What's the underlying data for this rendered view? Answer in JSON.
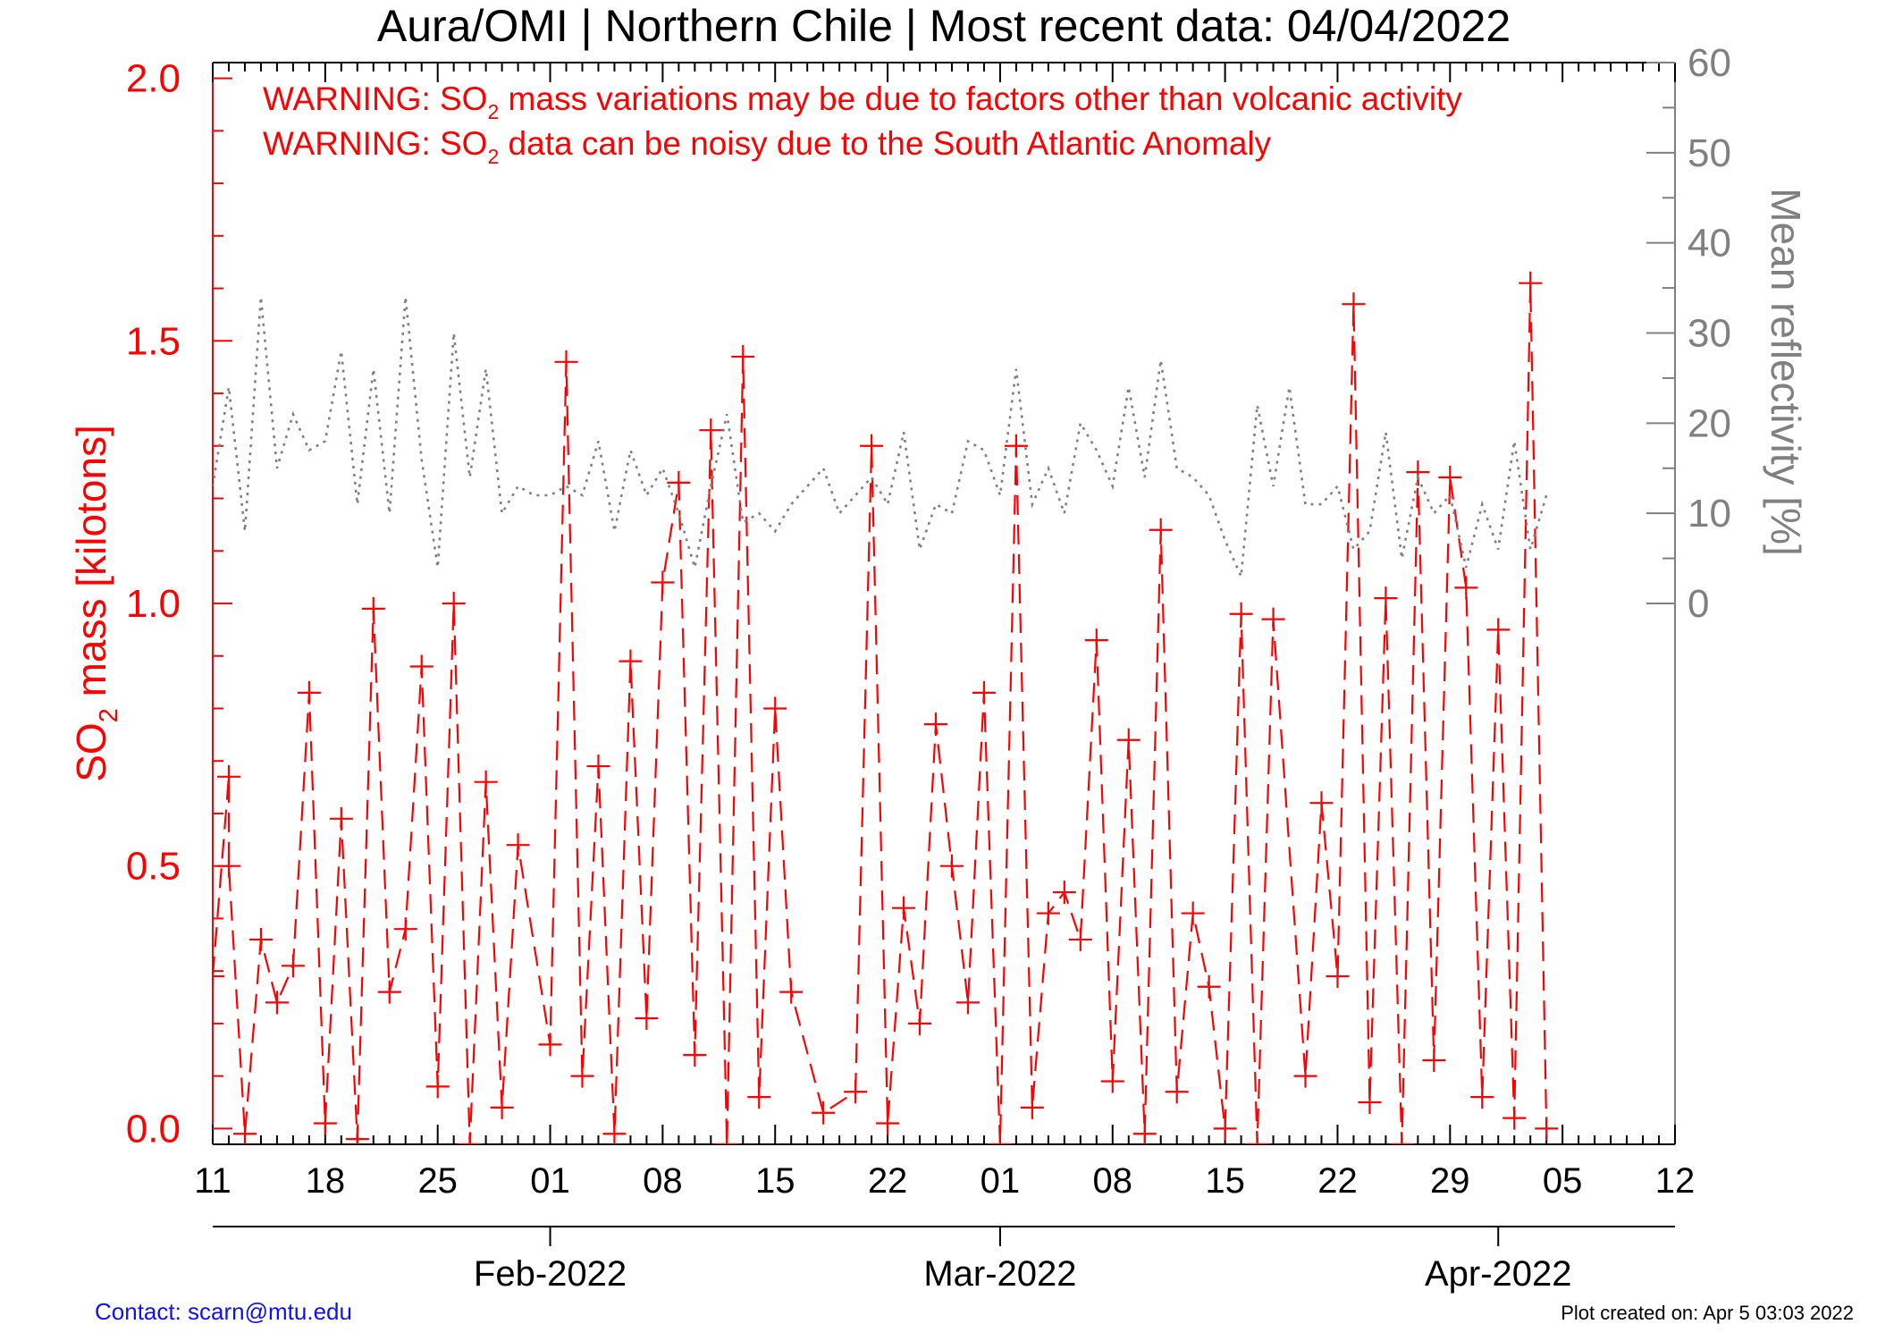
{
  "chart_data": {
    "type": "line",
    "title": "Aura/OMI | Northern Chile | Most recent data: 04/04/2022",
    "warnings": [
      {
        "prefix": "WARNING: SO",
        "sub": "2",
        "suffix": " mass variations may be due to factors other than volcanic activity"
      },
      {
        "prefix": "WARNING: SO",
        "sub": "2",
        "suffix": " data can be noisy due to the South Atlantic Anomaly"
      }
    ],
    "ylabel_left": {
      "prefix": "SO",
      "sub": "2",
      "suffix": " mass [kilotons]"
    },
    "ylabel_right": "Mean reflectivity [%]",
    "x_range": [
      "2022-01-11",
      "2022-04-12"
    ],
    "x_tick_labels": [
      "11",
      "18",
      "25",
      "01",
      "08",
      "15",
      "22",
      "01",
      "08",
      "15",
      "22",
      "29",
      "05",
      "12"
    ],
    "x_tick_dates": [
      "2022-01-11",
      "2022-01-18",
      "2022-01-25",
      "2022-02-01",
      "2022-02-08",
      "2022-02-15",
      "2022-02-22",
      "2022-03-01",
      "2022-03-08",
      "2022-03-15",
      "2022-03-22",
      "2022-03-29",
      "2022-04-05",
      "2022-04-12"
    ],
    "month_labels": [
      {
        "label": "Feb-2022",
        "date": "2022-02-01"
      },
      {
        "label": "Mar-2022",
        "date": "2022-03-01"
      },
      {
        "label": "Apr-2022",
        "date": "2022-04-01"
      }
    ],
    "y_left_range": [
      -0.03,
      2.03
    ],
    "y_left_ticks": [
      "0.0",
      "0.5",
      "1.0",
      "1.5",
      "2.0"
    ],
    "y_right_range": [
      -60,
      60
    ],
    "y_right_ticks": [
      "0",
      "10",
      "20",
      "30",
      "40",
      "50",
      "60"
    ],
    "series": [
      {
        "name": "SO2 mass",
        "axis": "left",
        "color": "#ff0000",
        "style": "dashed",
        "marker": "plus",
        "x": [
          "2022-01-11",
          "2022-01-12",
          "2022-01-12",
          "2022-01-13",
          "2022-01-14",
          "2022-01-15",
          "2022-01-16",
          "2022-01-17",
          "2022-01-18",
          "2022-01-19",
          "2022-01-20",
          "2022-01-21",
          "2022-01-22",
          "2022-01-23",
          "2022-01-24",
          "2022-01-25",
          "2022-01-26",
          "2022-01-27",
          "2022-01-28",
          "2022-01-29",
          "2022-01-30",
          "2022-02-01",
          "2022-02-02",
          "2022-02-03",
          "2022-02-04",
          "2022-02-05",
          "2022-02-06",
          "2022-02-07",
          "2022-02-08",
          "2022-02-09",
          "2022-02-10",
          "2022-02-11",
          "2022-02-12",
          "2022-02-13",
          "2022-02-14",
          "2022-02-15",
          "2022-02-16",
          "2022-02-18",
          "2022-02-20",
          "2022-02-21",
          "2022-02-22",
          "2022-02-23",
          "2022-02-24",
          "2022-02-25",
          "2022-02-26",
          "2022-02-27",
          "2022-02-28",
          "2022-03-01",
          "2022-03-02",
          "2022-03-03",
          "2022-03-04",
          "2022-03-05",
          "2022-03-06",
          "2022-03-07",
          "2022-03-08",
          "2022-03-09",
          "2022-03-10",
          "2022-03-11",
          "2022-03-12",
          "2022-03-13",
          "2022-03-14",
          "2022-03-15",
          "2022-03-16",
          "2022-03-17",
          "2022-03-18",
          "2022-03-20",
          "2022-03-21",
          "2022-03-22",
          "2022-03-23",
          "2022-03-24",
          "2022-03-25",
          "2022-03-26",
          "2022-03-27",
          "2022-03-28",
          "2022-03-29",
          "2022-03-30",
          "2022-03-31",
          "2022-04-01",
          "2022-04-02",
          "2022-04-03",
          "2022-04-04"
        ],
        "values": [
          0.29,
          0.67,
          0.5,
          -0.01,
          0.36,
          0.24,
          0.31,
          0.83,
          0.01,
          0.59,
          -0.02,
          0.99,
          0.26,
          0.38,
          0.88,
          0.08,
          1.0,
          -0.03,
          0.66,
          0.04,
          0.54,
          0.16,
          1.46,
          0.1,
          0.69,
          -0.01,
          0.89,
          0.21,
          1.04,
          1.23,
          0.14,
          1.33,
          -0.03,
          1.47,
          0.06,
          0.8,
          0.26,
          0.03,
          0.07,
          1.3,
          0.01,
          0.42,
          0.2,
          0.77,
          0.5,
          0.24,
          0.83,
          -0.03,
          1.3,
          0.04,
          0.41,
          0.45,
          0.36,
          0.93,
          0.09,
          0.74,
          -0.01,
          1.14,
          0.07,
          0.41,
          0.27,
          0.0,
          0.98,
          -0.03,
          0.97,
          0.1,
          0.62,
          0.29,
          1.57,
          0.05,
          1.01,
          -0.03,
          1.25,
          0.13,
          1.24,
          1.03,
          0.06,
          0.95,
          0.02,
          1.61,
          0.0
        ]
      },
      {
        "name": "Mean reflectivity",
        "axis": "right",
        "color": "#808080",
        "style": "dotted",
        "x": [
          "2022-01-11",
          "2022-01-12",
          "2022-01-13",
          "2022-01-14",
          "2022-01-15",
          "2022-01-16",
          "2022-01-17",
          "2022-01-18",
          "2022-01-19",
          "2022-01-20",
          "2022-01-21",
          "2022-01-22",
          "2022-01-23",
          "2022-01-24",
          "2022-01-25",
          "2022-01-26",
          "2022-01-27",
          "2022-01-28",
          "2022-01-29",
          "2022-01-30",
          "2022-01-31",
          "2022-02-01",
          "2022-02-02",
          "2022-02-03",
          "2022-02-04",
          "2022-02-05",
          "2022-02-06",
          "2022-02-07",
          "2022-02-08",
          "2022-02-09",
          "2022-02-10",
          "2022-02-11",
          "2022-02-12",
          "2022-02-13",
          "2022-02-14",
          "2022-02-15",
          "2022-02-16",
          "2022-02-17",
          "2022-02-18",
          "2022-02-19",
          "2022-02-20",
          "2022-02-21",
          "2022-02-22",
          "2022-02-23",
          "2022-02-24",
          "2022-02-25",
          "2022-02-26",
          "2022-02-27",
          "2022-02-28",
          "2022-03-01",
          "2022-03-02",
          "2022-03-03",
          "2022-03-04",
          "2022-03-05",
          "2022-03-06",
          "2022-03-07",
          "2022-03-08",
          "2022-03-09",
          "2022-03-10",
          "2022-03-11",
          "2022-03-12",
          "2022-03-13",
          "2022-03-14",
          "2022-03-15",
          "2022-03-16",
          "2022-03-17",
          "2022-03-18",
          "2022-03-19",
          "2022-03-20",
          "2022-03-21",
          "2022-03-22",
          "2022-03-23",
          "2022-03-24",
          "2022-03-25",
          "2022-03-26",
          "2022-03-27",
          "2022-03-28",
          "2022-03-29",
          "2022-03-30",
          "2022-03-31",
          "2022-04-01",
          "2022-04-02",
          "2022-04-03",
          "2022-04-04"
        ],
        "values": [
          13,
          24,
          8,
          34,
          15,
          21,
          17,
          18,
          28,
          11,
          26,
          10,
          34,
          16,
          4,
          30,
          14,
          26,
          10,
          13,
          12,
          12,
          13,
          12,
          18,
          8,
          17,
          12,
          15,
          10,
          4,
          13,
          21,
          9,
          10,
          8,
          11,
          13,
          15,
          10,
          12,
          14,
          11,
          19,
          6,
          11,
          10,
          18,
          17,
          12,
          26,
          11,
          15,
          10,
          20,
          17,
          13,
          24,
          14,
          27,
          15,
          14,
          12,
          7,
          3,
          22,
          13,
          24,
          11,
          11,
          13,
          6,
          8,
          19,
          5,
          14,
          10,
          12,
          4,
          11,
          6,
          18,
          6,
          12
        ]
      }
    ],
    "grid": false,
    "legend": "none"
  },
  "footer": {
    "contact": "Contact: scarn@mtu.edu",
    "created": "Plot created on: Apr  5 03:03 2022"
  }
}
